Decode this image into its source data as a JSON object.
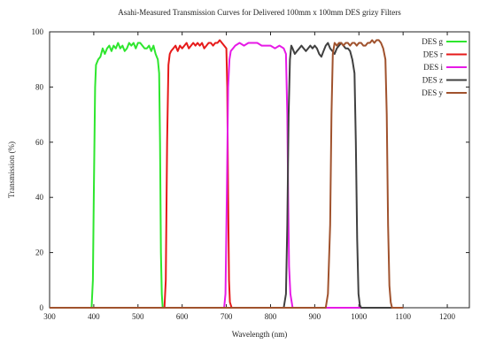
{
  "chart_data": {
    "type": "line",
    "title": "Asahi-Measured Transmission Curves for Delivered 100mm x 100mm DES grizy Filters",
    "xlabel": "Wavelength (nm)",
    "ylabel": "Transmission (%)",
    "xlim": [
      300,
      1250
    ],
    "ylim": [
      0,
      100
    ],
    "xticks": [
      300,
      400,
      500,
      600,
      700,
      800,
      900,
      1000,
      1100,
      1200
    ],
    "yticks": [
      0,
      20,
      40,
      60,
      80,
      100
    ],
    "legend_position": "top-right",
    "series": [
      {
        "name": "DES g",
        "color": "#2ee62e",
        "x": [
          300,
          395,
          398,
          400,
          403,
          405,
          410,
          415,
          420,
          425,
          430,
          435,
          440,
          445,
          450,
          455,
          460,
          465,
          470,
          475,
          480,
          485,
          490,
          495,
          500,
          505,
          510,
          515,
          520,
          525,
          530,
          535,
          540,
          545,
          548,
          550,
          552,
          554,
          556,
          560,
          1100
        ],
        "y": [
          0,
          0,
          10,
          40,
          80,
          88,
          90,
          91,
          94,
          92,
          94,
          95,
          93,
          95,
          94,
          96,
          94,
          95,
          93,
          94,
          96,
          95,
          96,
          94,
          96,
          96,
          95,
          94,
          94,
          95,
          93,
          95,
          92,
          90,
          85,
          60,
          20,
          5,
          0,
          0,
          0
        ]
      },
      {
        "name": "DES r",
        "color": "#e61a1a",
        "x": [
          300,
          560,
          563,
          566,
          569,
          572,
          575,
          580,
          585,
          590,
          595,
          600,
          605,
          610,
          615,
          620,
          625,
          630,
          635,
          640,
          645,
          650,
          655,
          660,
          665,
          670,
          675,
          680,
          685,
          690,
          695,
          700,
          702,
          704,
          706,
          708,
          712,
          1100
        ],
        "y": [
          0,
          0,
          10,
          60,
          88,
          92,
          93,
          94,
          95,
          93,
          95,
          94,
          95,
          96,
          94,
          95,
          96,
          95,
          96,
          95,
          96,
          94,
          95,
          96,
          96,
          95,
          96,
          96,
          97,
          96,
          95,
          94,
          80,
          40,
          10,
          2,
          0,
          0
        ]
      },
      {
        "name": "DES i",
        "color": "#e61ae6",
        "x": [
          300,
          695,
          698,
          701,
          704,
          707,
          710,
          715,
          720,
          730,
          740,
          750,
          760,
          770,
          780,
          790,
          800,
          810,
          820,
          830,
          835,
          838,
          840,
          842,
          845,
          850,
          855,
          1100
        ],
        "y": [
          0,
          0,
          5,
          40,
          80,
          90,
          93,
          94,
          95,
          96,
          95,
          96,
          96,
          96,
          95,
          95,
          95,
          94,
          95,
          94,
          92,
          70,
          40,
          15,
          5,
          0,
          0,
          0
        ]
      },
      {
        "name": "DES z",
        "color": "#404040",
        "x": [
          300,
          830,
          835,
          838,
          841,
          844,
          847,
          850,
          855,
          860,
          865,
          870,
          875,
          880,
          885,
          890,
          895,
          900,
          905,
          910,
          915,
          920,
          925,
          930,
          935,
          940,
          945,
          950,
          955,
          960,
          965,
          970,
          975,
          980,
          985,
          990,
          993,
          996,
          999,
          1002,
          1005,
          1010,
          1100
        ],
        "y": [
          0,
          0,
          5,
          30,
          70,
          90,
          95,
          94,
          92,
          93,
          94,
          95,
          94,
          93,
          94,
          95,
          94,
          95,
          94,
          92,
          91,
          93,
          95,
          96,
          94,
          93,
          92,
          94,
          95,
          96,
          95,
          94,
          94,
          93,
          90,
          85,
          60,
          25,
          5,
          1,
          0,
          0,
          0
        ]
      },
      {
        "name": "DES y",
        "color": "#a0522d",
        "x": [
          300,
          925,
          930,
          935,
          938,
          941,
          945,
          950,
          955,
          960,
          965,
          970,
          975,
          980,
          985,
          990,
          995,
          1000,
          1005,
          1010,
          1015,
          1020,
          1025,
          1030,
          1035,
          1040,
          1045,
          1050,
          1055,
          1060,
          1063,
          1066,
          1069,
          1072,
          1075,
          1080,
          1100
        ],
        "y": [
          0,
          0,
          5,
          30,
          70,
          92,
          96,
          95,
          96,
          96,
          95,
          96,
          96,
          95,
          96,
          96,
          95,
          96,
          96,
          95,
          95,
          96,
          96,
          97,
          96,
          97,
          97,
          96,
          94,
          90,
          70,
          30,
          8,
          2,
          0,
          0,
          0
        ]
      }
    ]
  }
}
